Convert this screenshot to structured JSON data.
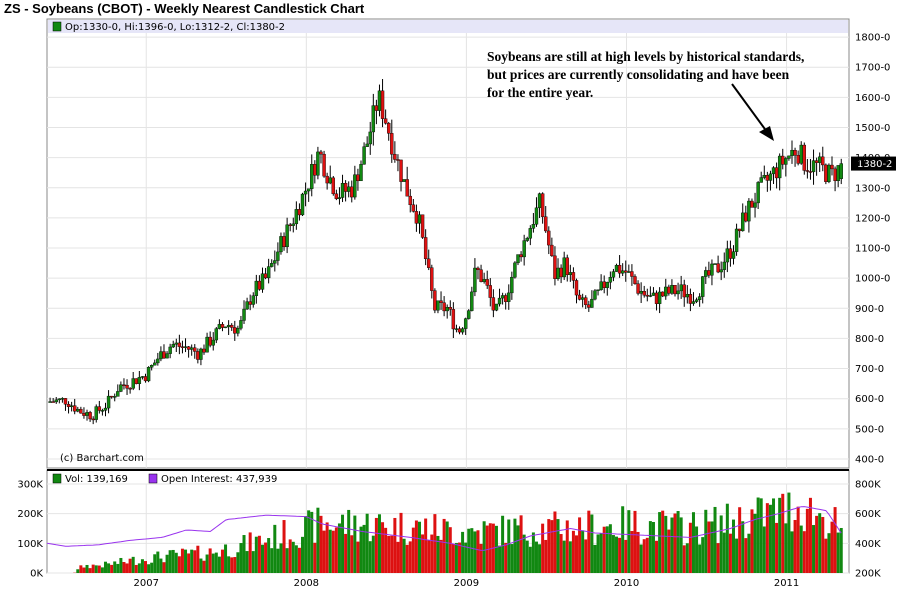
{
  "title": "ZS - Soybeans (CBOT) - Weekly Nearest Candlestick Chart",
  "price_legend": "Op:1330-0, Hi:1396-0, Lo:1312-2, Cl:1380-2",
  "last_price_label": "1380-2",
  "copyright": "(c) Barchart.com",
  "annotation_lines": [
    "Soybeans are still at high levels by historical standards,",
    "but prices are currently consolidating and have been",
    "for the entire year."
  ],
  "volume_legend": "Vol: 139,169",
  "oi_legend": "Open Interest: 437,939",
  "colors": {
    "up": "#118811",
    "down": "#dd1111",
    "oi_line": "#9933ee",
    "legend_bar": "#e6e6f8"
  },
  "chart_data": [
    {
      "type": "candlestick",
      "title": "ZS - Soybeans (CBOT) - Weekly Nearest Candlestick Chart",
      "y_ticks": [
        "400-0",
        "500-0",
        "600-0",
        "700-0",
        "800-0",
        "900-0",
        "1000-0",
        "1100-0",
        "1200-0",
        "1300-0",
        "1400-0",
        "1500-0",
        "1600-0",
        "1700-0",
        "1800-0"
      ],
      "ylim": [
        370,
        1860
      ],
      "x_ticks": [
        "2007",
        "2008",
        "2009",
        "2010",
        "2011"
      ],
      "x_tick_years": [
        2007,
        2008,
        2009,
        2010,
        2011
      ],
      "xlim": [
        2006.38,
        2011.39
      ],
      "last": {
        "open": 1330,
        "high": 1396,
        "low": 1312.25,
        "close": 1380.25
      },
      "close_path": [
        [
          2006.38,
          590
        ],
        [
          2006.5,
          595
        ],
        [
          2006.58,
          560
        ],
        [
          2006.66,
          545
        ],
        [
          2006.75,
          580
        ],
        [
          2006.83,
          640
        ],
        [
          2006.92,
          660
        ],
        [
          2007.0,
          680
        ],
        [
          2007.08,
          740
        ],
        [
          2007.16,
          780
        ],
        [
          2007.25,
          770
        ],
        [
          2007.33,
          750
        ],
        [
          2007.41,
          800
        ],
        [
          2007.5,
          850
        ],
        [
          2007.58,
          830
        ],
        [
          2007.66,
          950
        ],
        [
          2007.75,
          1000
        ],
        [
          2007.83,
          1100
        ],
        [
          2007.92,
          1200
        ],
        [
          2008.0,
          1300
        ],
        [
          2008.08,
          1420
        ],
        [
          2008.13,
          1350
        ],
        [
          2008.2,
          1280
        ],
        [
          2008.29,
          1300
        ],
        [
          2008.38,
          1450
        ],
        [
          2008.45,
          1600
        ],
        [
          2008.5,
          1520
        ],
        [
          2008.55,
          1420
        ],
        [
          2008.62,
          1300
        ],
        [
          2008.7,
          1200
        ],
        [
          2008.75,
          1050
        ],
        [
          2008.8,
          900
        ],
        [
          2008.88,
          900
        ],
        [
          2008.95,
          820
        ],
        [
          2009.0,
          880
        ],
        [
          2009.06,
          1030
        ],
        [
          2009.12,
          980
        ],
        [
          2009.18,
          880
        ],
        [
          2009.25,
          950
        ],
        [
          2009.33,
          1080
        ],
        [
          2009.42,
          1200
        ],
        [
          2009.46,
          1250
        ],
        [
          2009.5,
          1150
        ],
        [
          2009.55,
          1010
        ],
        [
          2009.62,
          1050
        ],
        [
          2009.7,
          920
        ],
        [
          2009.76,
          900
        ],
        [
          2009.83,
          950
        ],
        [
          2009.92,
          1040
        ],
        [
          2010.0,
          1020
        ],
        [
          2010.08,
          960
        ],
        [
          2010.16,
          930
        ],
        [
          2010.25,
          950
        ],
        [
          2010.33,
          960
        ],
        [
          2010.42,
          940
        ],
        [
          2010.5,
          1000
        ],
        [
          2010.58,
          1040
        ],
        [
          2010.66,
          1100
        ],
        [
          2010.75,
          1220
        ],
        [
          2010.83,
          1290
        ],
        [
          2010.92,
          1350
        ],
        [
          2011.0,
          1400
        ],
        [
          2011.06,
          1430
        ],
        [
          2011.12,
          1380
        ],
        [
          2011.2,
          1370
        ],
        [
          2011.28,
          1340
        ],
        [
          2011.36,
          1380.25
        ]
      ]
    },
    {
      "type": "bar",
      "title": "Volume / Open Interest",
      "series": [
        {
          "name": "Vol: 139,169",
          "last": 139169
        },
        {
          "name": "Open Interest: 437,939",
          "last": 437939
        }
      ],
      "y_ticks_left": [
        "0K",
        "100K",
        "200K",
        "300K"
      ],
      "ylim_left": [
        0,
        300000
      ],
      "y_ticks_right": [
        "200K",
        "400K",
        "600K",
        "800K"
      ],
      "ylim_right": [
        200000,
        800000
      ],
      "volume_path": [
        [
          2006.38,
          0
        ],
        [
          2006.55,
          0
        ],
        [
          2006.6,
          25000
        ],
        [
          2006.75,
          30000
        ],
        [
          2006.9,
          45000
        ],
        [
          2007.1,
          60000
        ],
        [
          2007.4,
          75000
        ],
        [
          2007.6,
          100000
        ],
        [
          2007.8,
          130000
        ],
        [
          2008.0,
          160000
        ],
        [
          2008.1,
          180000
        ],
        [
          2008.4,
          175000
        ],
        [
          2008.7,
          165000
        ],
        [
          2009.0,
          150000
        ],
        [
          2009.4,
          160000
        ],
        [
          2009.7,
          165000
        ],
        [
          2010.0,
          175000
        ],
        [
          2010.4,
          165000
        ],
        [
          2010.7,
          190000
        ],
        [
          2010.9,
          220000
        ],
        [
          2011.1,
          240000
        ],
        [
          2011.3,
          180000
        ],
        [
          2011.36,
          139169
        ]
      ],
      "oi_path": [
        [
          2006.38,
          400000
        ],
        [
          2006.5,
          380000
        ],
        [
          2006.7,
          390000
        ],
        [
          2006.9,
          420000
        ],
        [
          2007.1,
          440000
        ],
        [
          2007.25,
          490000
        ],
        [
          2007.4,
          480000
        ],
        [
          2007.5,
          560000
        ],
        [
          2007.75,
          590000
        ],
        [
          2008.0,
          580000
        ],
        [
          2008.1,
          530000
        ],
        [
          2008.35,
          480000
        ],
        [
          2008.65,
          440000
        ],
        [
          2008.9,
          400000
        ],
        [
          2009.1,
          350000
        ],
        [
          2009.25,
          390000
        ],
        [
          2009.4,
          450000
        ],
        [
          2009.65,
          500000
        ],
        [
          2009.8,
          470000
        ],
        [
          2010.0,
          460000
        ],
        [
          2010.4,
          440000
        ],
        [
          2010.65,
          500000
        ],
        [
          2010.8,
          560000
        ],
        [
          2010.95,
          600000
        ],
        [
          2011.1,
          650000
        ],
        [
          2011.25,
          620000
        ],
        [
          2011.36,
          437939
        ]
      ]
    }
  ]
}
